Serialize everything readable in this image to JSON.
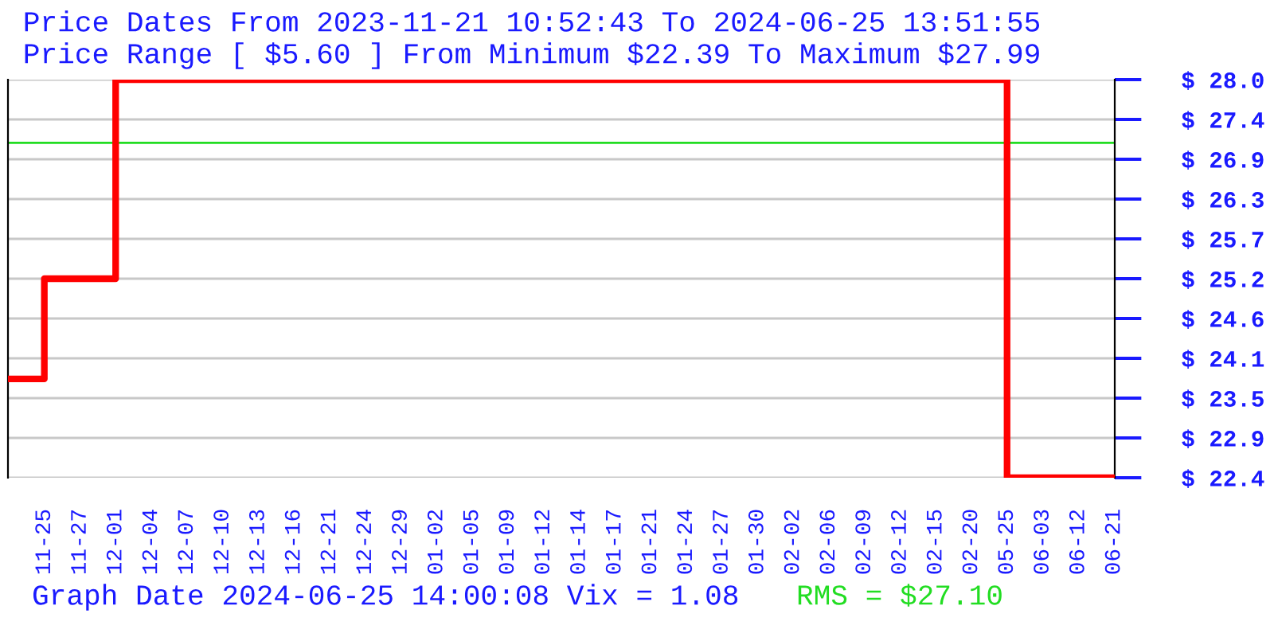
{
  "chart_data": {
    "type": "step",
    "title": "Price Dates From 2023-11-21 10:52:43 To 2024-06-25 13:51:55",
    "subtitle": "Price Range [ $5.60 ] From Minimum $22.39 To Maximum $27.99",
    "categories": [
      null,
      "11-25",
      "11-27",
      "12-01",
      "12-04",
      "12-07",
      "12-10",
      "12-13",
      "12-16",
      "12-21",
      "12-24",
      "12-29",
      "01-02",
      "01-05",
      "01-09",
      "01-12",
      "01-14",
      "01-17",
      "01-21",
      "01-24",
      "01-27",
      "01-30",
      "02-02",
      "02-06",
      "02-09",
      "02-12",
      "02-15",
      "02-20",
      "05-25",
      "06-03",
      "06-12",
      "06-21"
    ],
    "series": [
      {
        "color": "#ff0000",
        "values": [
          23.78,
          25.19,
          25.19,
          27.99,
          27.99,
          27.99,
          27.99,
          27.99,
          27.99,
          27.99,
          27.99,
          27.99,
          27.99,
          27.99,
          27.99,
          27.99,
          27.99,
          27.99,
          27.99,
          27.99,
          27.99,
          27.99,
          27.99,
          27.99,
          27.99,
          27.99,
          27.99,
          27.99,
          22.39,
          22.39,
          22.39,
          22.39
        ]
      }
    ],
    "ylim": [
      22.39,
      27.99
    ],
    "yticks": [
      {
        "value": 22.39,
        "label": "$ 22.4"
      },
      {
        "value": 22.95,
        "label": "$ 22.9"
      },
      {
        "value": 23.51,
        "label": "$ 23.5"
      },
      {
        "value": 24.07,
        "label": "$ 24.1"
      },
      {
        "value": 24.63,
        "label": "$ 24.6"
      },
      {
        "value": 25.19,
        "label": "$ 25.2"
      },
      {
        "value": 25.75,
        "label": "$ 25.7"
      },
      {
        "value": 26.31,
        "label": "$ 26.3"
      },
      {
        "value": 26.87,
        "label": "$ 26.9"
      },
      {
        "value": 27.43,
        "label": "$ 27.4"
      },
      {
        "value": 27.99,
        "label": "$ 28.0"
      }
    ],
    "ref_lines": [
      {
        "axis": "y",
        "value": 27.1,
        "label": "RMS = $27.10",
        "color": "#22dd22"
      }
    ],
    "annotations": [
      "Graph Date 2024-06-25 14:00:08 Vix = 1.08"
    ],
    "grid": "y",
    "legend": false,
    "marker": "none",
    "line_style": "solid"
  }
}
